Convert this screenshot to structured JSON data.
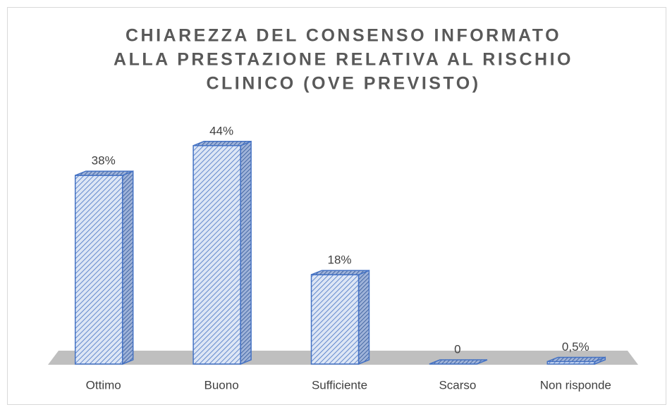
{
  "chart_data": {
    "type": "bar3d",
    "title": [
      "CHIAREZZA DEL CONSENSO INFORMATO",
      "ALLA PRESTAZIONE RELATIVA AL RISCHIO",
      "CLINICO (OVE PREVISTO)"
    ],
    "categories": [
      "Ottimo",
      "Buono",
      "Sufficiente",
      "Scarso",
      "Non risponde"
    ],
    "values": [
      38,
      44,
      18,
      0,
      0.5
    ],
    "value_labels": [
      "38%",
      "44%",
      "18%",
      "0",
      "0,5%"
    ],
    "color": "#4472c4"
  }
}
